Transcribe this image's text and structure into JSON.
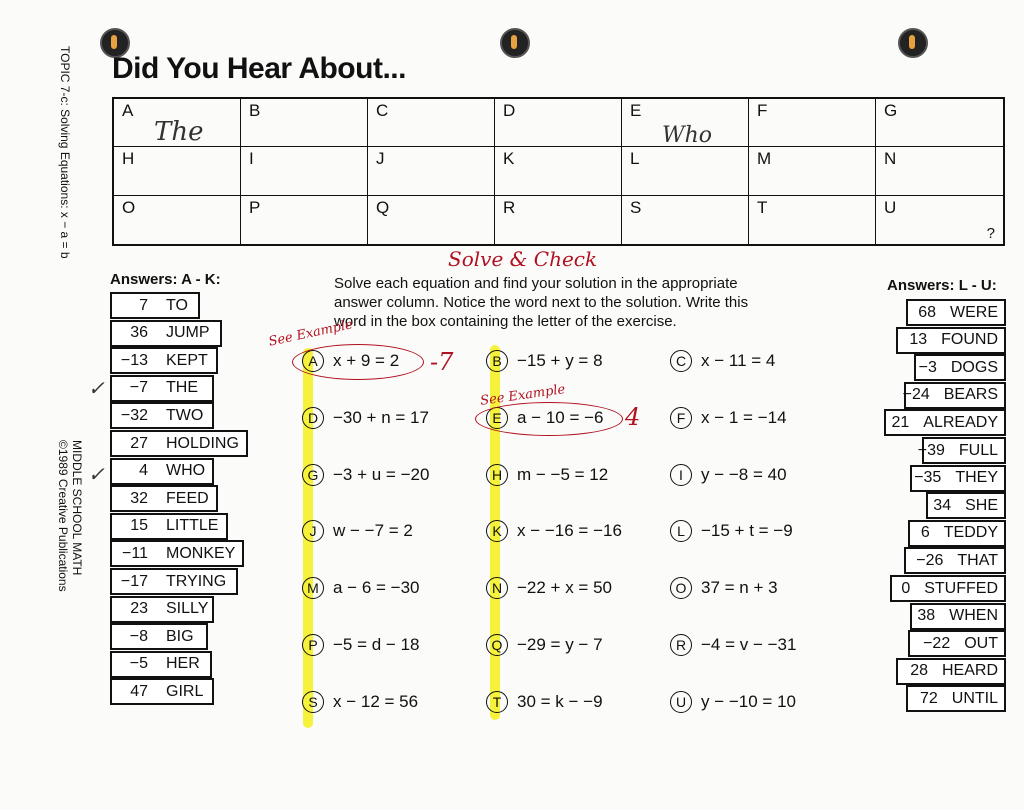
{
  "title": "Did You Hear About...",
  "side_topic": "TOPIC 7-c: Solving Equations: x − a = b",
  "side_credit_1": "MIDDLE SCHOOL MATH",
  "side_credit_2": "©1989 Creative Publications",
  "grid": {
    "cells": [
      "A",
      "B",
      "C",
      "D",
      "E",
      "F",
      "G",
      "H",
      "I",
      "J",
      "K",
      "L",
      "M",
      "N",
      "O",
      "P",
      "Q",
      "R",
      "S",
      "T",
      "U"
    ],
    "question_mark": "?",
    "handwritten_a": "The",
    "handwritten_e": "Who"
  },
  "answers_left": {
    "heading": "Answers: A - K:",
    "items": [
      [
        "7",
        "TO"
      ],
      [
        "36",
        "JUMP"
      ],
      [
        "−13",
        "KEPT"
      ],
      [
        "−7",
        "THE"
      ],
      [
        "−32",
        "TWO"
      ],
      [
        "27",
        "HOLDING"
      ],
      [
        "4",
        "WHO"
      ],
      [
        "32",
        "FEED"
      ],
      [
        "15",
        "LITTLE"
      ],
      [
        "−11",
        "MONKEY"
      ],
      [
        "−17",
        "TRYING"
      ],
      [
        "23",
        "SILLY"
      ],
      [
        "−8",
        "BIG"
      ],
      [
        "−5",
        "HER"
      ],
      [
        "47",
        "GIRL"
      ]
    ]
  },
  "answers_right": {
    "heading": "Answers: L - U:",
    "items": [
      [
        "68",
        "WERE"
      ],
      [
        "13",
        "FOUND"
      ],
      [
        "−3",
        "DOGS"
      ],
      [
        "−24",
        "BEARS"
      ],
      [
        "21",
        "ALREADY"
      ],
      [
        "−39",
        "FULL"
      ],
      [
        "−35",
        "THEY"
      ],
      [
        "34",
        "SHE"
      ],
      [
        "6",
        "TEDDY"
      ],
      [
        "−26",
        "THAT"
      ],
      [
        "0",
        "STUFFED"
      ],
      [
        "38",
        "WHEN"
      ],
      [
        "−22",
        "OUT"
      ],
      [
        "28",
        "HEARD"
      ],
      [
        "72",
        "UNTIL"
      ]
    ]
  },
  "instructions": "Solve each equation and find your solution in the appropriate answer column. Notice the word next to the solution. Write this word in the box containing the letter of the exercise.",
  "handwritten": {
    "solve_check": "Solve & Check",
    "see_example_a": "See Example",
    "see_example_e": "See Example",
    "answer_a": "-7",
    "answer_e": "4",
    "checkmark": "✓"
  },
  "equations": [
    [
      "A",
      "x + 9 = 2"
    ],
    [
      "B",
      "−15 + y = 8"
    ],
    [
      "C",
      "x − 11 = 4"
    ],
    [
      "D",
      "−30 + n = 17"
    ],
    [
      "E",
      "a − 10 = −6"
    ],
    [
      "F",
      "x − 1 = −14"
    ],
    [
      "G",
      "−3 + u = −20"
    ],
    [
      "H",
      "m − −5 = 12"
    ],
    [
      "I",
      "y − −8 = 40"
    ],
    [
      "J",
      "w − −7 = 2"
    ],
    [
      "K",
      "x − −16 = −16"
    ],
    [
      "L",
      "−15 + t = −9"
    ],
    [
      "M",
      "a − 6 = −30"
    ],
    [
      "N",
      "−22 + x = 50"
    ],
    [
      "O",
      "37 = n + 3"
    ],
    [
      "P",
      "−5 = d − 18"
    ],
    [
      "Q",
      "−29 = y − 7"
    ],
    [
      "R",
      "−4 = v − −31"
    ],
    [
      "S",
      "x − 12 = 56"
    ],
    [
      "T",
      "30 = k − −9"
    ],
    [
      "U",
      "y − −10 = 10"
    ]
  ],
  "colors": {
    "ink": "#111111",
    "pen_red": "#b01020",
    "highlight": "#f4f01a"
  }
}
